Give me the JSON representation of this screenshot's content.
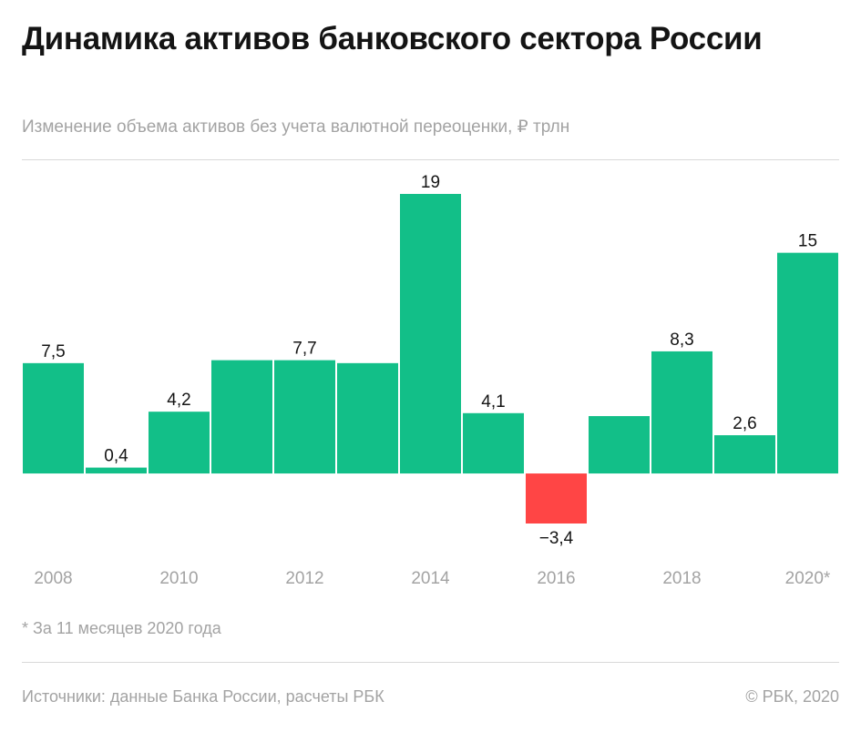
{
  "header": {
    "title": "Динамика активов банковского сектора России",
    "subtitle": "Изменение объема активов без учета валютной переоценки, ₽ трлн"
  },
  "footer": {
    "footnote": "* За 11 месяцев 2020 года",
    "source": "Источники: данные Банка России, расчеты РБК",
    "copyright": "© РБК, 2020"
  },
  "colors": {
    "positive": "#12bf88",
    "negative": "#ff4545",
    "label": "#141414",
    "tick": "#a3a3a3"
  },
  "chart_data": {
    "type": "bar",
    "categories": [
      "2008",
      "2009",
      "2010",
      "2011",
      "2012",
      "2013",
      "2014",
      "2015",
      "2016",
      "2017",
      "2018",
      "2019",
      "2020*"
    ],
    "values": [
      7.5,
      0.4,
      4.2,
      7.7,
      7.7,
      7.5,
      19,
      4.1,
      -3.4,
      3.9,
      8.3,
      2.6,
      15
    ],
    "data_labels": [
      "7,5",
      "0,4",
      "4,2",
      "",
      "7,7",
      "",
      "19",
      "4,1",
      "−3,4",
      "",
      "8,3",
      "2,6",
      "15"
    ],
    "tick_labels": [
      "2008",
      "",
      "2010",
      "",
      "2012",
      "",
      "2014",
      "",
      "2016",
      "",
      "2018",
      "",
      "2020*"
    ],
    "title": "",
    "xlabel": "",
    "ylabel": "",
    "ylim": [
      -3.4,
      19
    ],
    "grid": false,
    "legend": "none"
  }
}
